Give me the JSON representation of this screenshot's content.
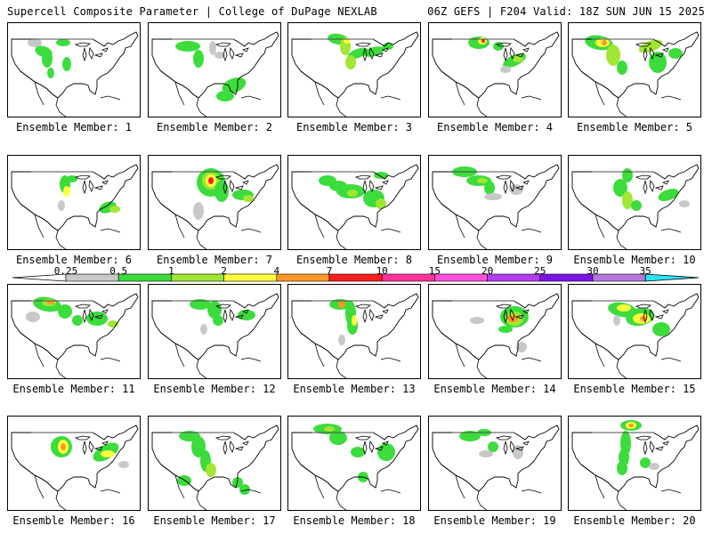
{
  "header": {
    "left": "Supercell Composite Parameter | College of DuPage NEXLAB",
    "right": "06Z GEFS | F204 Valid: 18Z SUN JUN 15 2025"
  },
  "panels": [
    {
      "label": "Ensemble Member: 1"
    },
    {
      "label": "Ensemble Member: 2"
    },
    {
      "label": "Ensemble Member: 3"
    },
    {
      "label": "Ensemble Member: 4"
    },
    {
      "label": "Ensemble Member: 5"
    },
    {
      "label": "Ensemble Member: 6"
    },
    {
      "label": "Ensemble Member: 7"
    },
    {
      "label": "Ensemble Member: 8"
    },
    {
      "label": "Ensemble Member: 9"
    },
    {
      "label": "Ensemble Member: 10"
    },
    {
      "label": "Ensemble Member: 11"
    },
    {
      "label": "Ensemble Member: 12"
    },
    {
      "label": "Ensemble Member: 13"
    },
    {
      "label": "Ensemble Member: 14"
    },
    {
      "label": "Ensemble Member: 15"
    },
    {
      "label": "Ensemble Member: 16"
    },
    {
      "label": "Ensemble Member: 17"
    },
    {
      "label": "Ensemble Member: 18"
    },
    {
      "label": "Ensemble Member: 19"
    },
    {
      "label": "Ensemble Member: 20"
    }
  ],
  "legend": {
    "ticks": [
      "0.25",
      "0.5",
      "1",
      "2",
      "4",
      "7",
      "10",
      "15",
      "20",
      "25",
      "30",
      "35"
    ],
    "colors": [
      "#c8c8c8",
      "#3cdc3c",
      "#a0e632",
      "#ffff3c",
      "#ff9628",
      "#ff1e1e",
      "#ff3296",
      "#ff50dc",
      "#b43cf0",
      "#7b14e6",
      "#b478dc",
      "#28e6f0"
    ],
    "lead_color": "#ffffff",
    "tail_color": "#28e6f0"
  }
}
